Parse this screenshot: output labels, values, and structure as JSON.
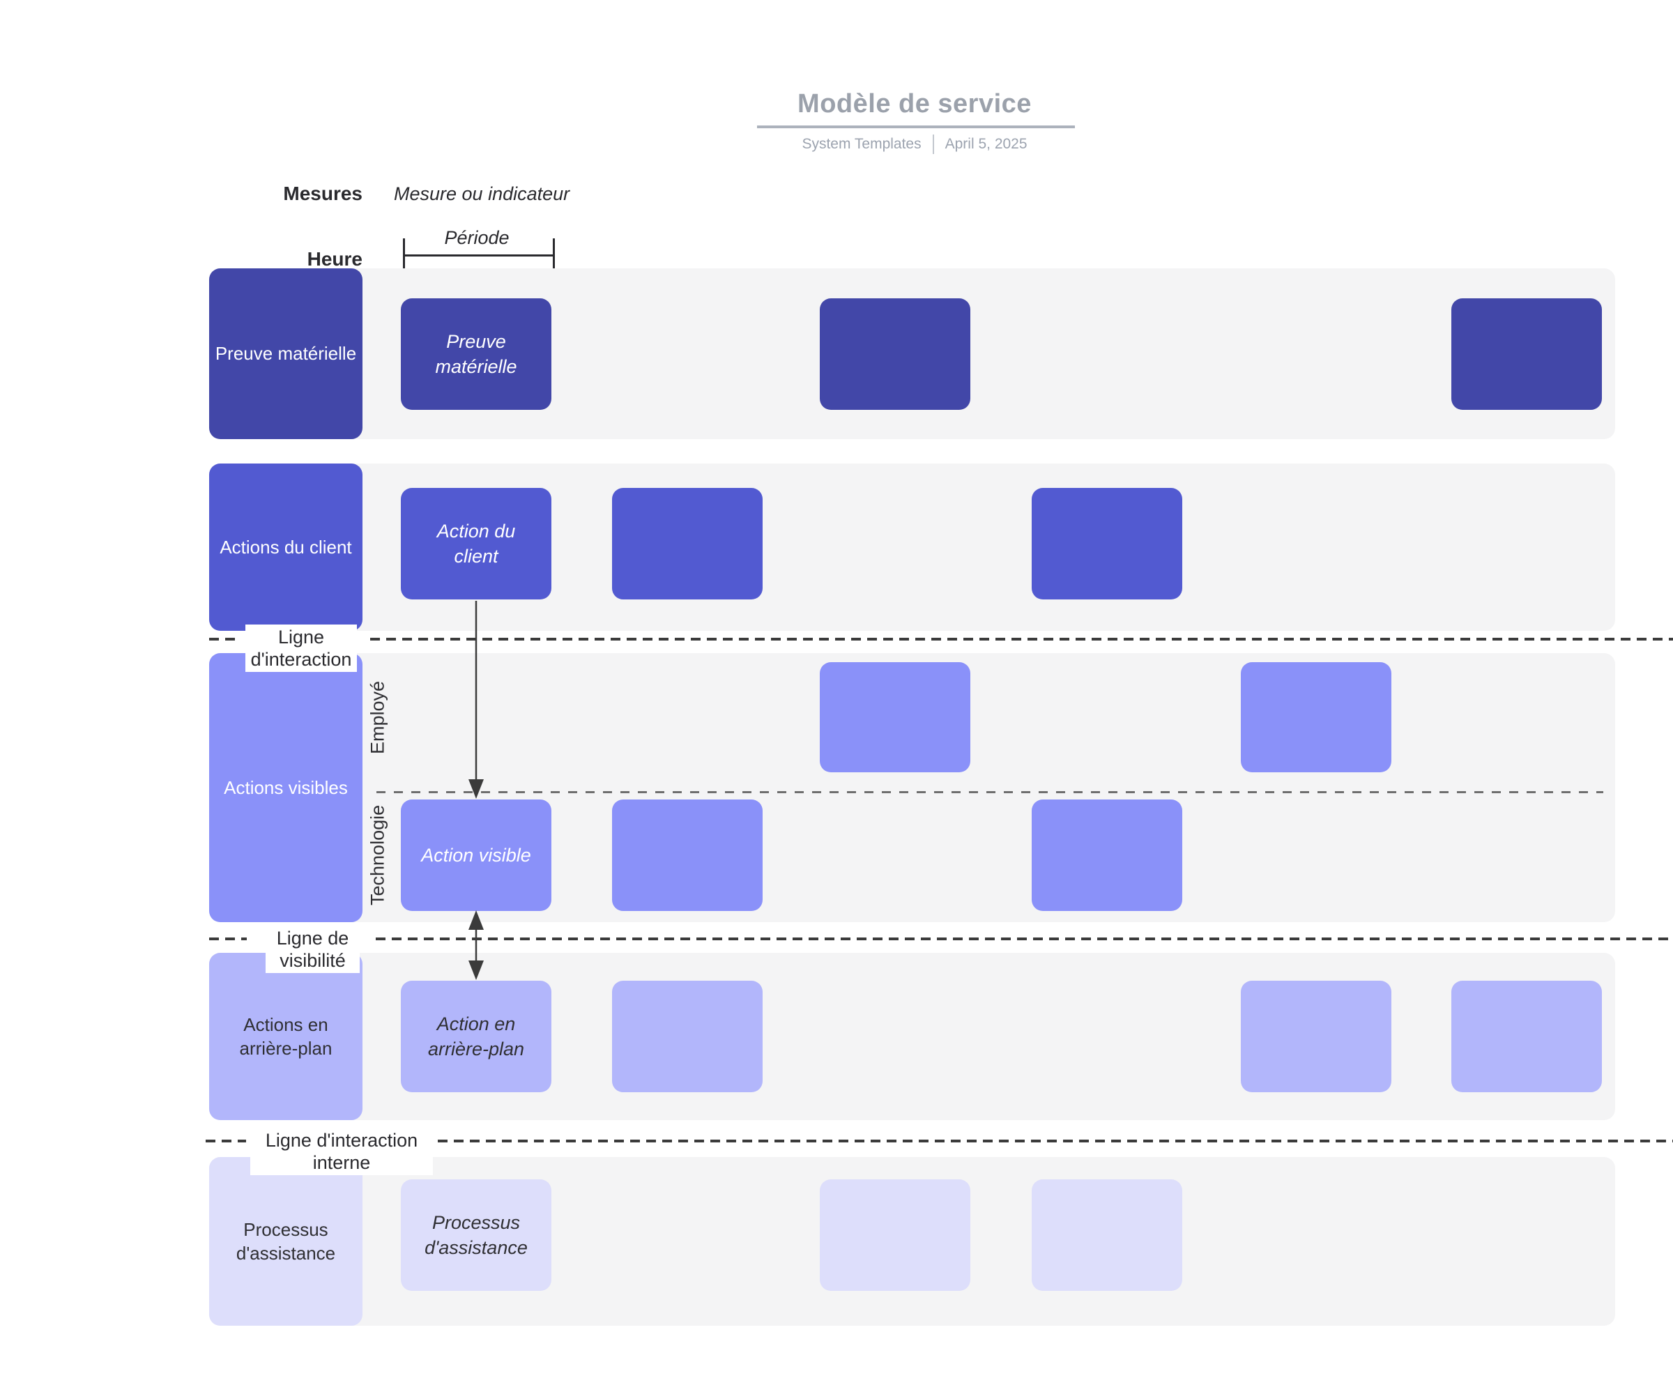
{
  "header": {
    "title": "Modèle de service",
    "source": "System Templates",
    "date": "April 5, 2025"
  },
  "annotations": {
    "measures_label": "Mesures",
    "measures_value": "Mesure ou indicateur",
    "time_label": "Heure",
    "time_value": "Période"
  },
  "palette": {
    "band_bg": "#F4F4F5",
    "row_dark": "#4247A8",
    "row_medium": "#525AD1",
    "row_light": "#8A91F9",
    "row_lighter": "#B2B6FB",
    "row_lightest": "#DDDEFB",
    "line_color": "#3B3B3B",
    "title_gray": "#9BA1AB",
    "text_dark": "#2F2F33",
    "text_light": "#FFFFFF"
  },
  "grid": {
    "columns": 6
  },
  "rows": [
    {
      "id": "preuve-materielle",
      "label": "Preuve matérielle",
      "fill": "#4247A8",
      "text": "#FFFFFF",
      "boxes": [
        {
          "col": 0,
          "label": "Preuve matérielle"
        },
        {
          "col": 2
        },
        {
          "col": 5
        }
      ]
    },
    {
      "id": "actions-client",
      "label": "Actions du client",
      "fill": "#525AD1",
      "text": "#FFFFFF",
      "boxes": [
        {
          "col": 0,
          "label": "Action du client"
        },
        {
          "col": 1
        },
        {
          "col": 3
        }
      ]
    },
    {
      "id": "actions-visibles",
      "label": "Actions visibles",
      "fill": "#8A91F9",
      "text": "#FFFFFF",
      "sublanes": [
        {
          "label": "Employé",
          "boxes": [
            {
              "col": 2
            },
            {
              "col": 4
            }
          ]
        },
        {
          "label": "Technologie",
          "boxes": [
            {
              "col": 0,
              "label": "Action visible"
            },
            {
              "col": 1
            },
            {
              "col": 3
            }
          ]
        }
      ]
    },
    {
      "id": "actions-arriere-plan",
      "label": "Actions en arrière-plan",
      "fill": "#B2B6FB",
      "text": "#2F2F33",
      "boxes": [
        {
          "col": 0,
          "label": "Action en arrière-plan"
        },
        {
          "col": 1
        },
        {
          "col": 4
        },
        {
          "col": 5
        }
      ]
    },
    {
      "id": "processus-assistance",
      "label": "Processus d'assistance",
      "fill": "#DDDEFB",
      "text": "#2F2F33",
      "boxes": [
        {
          "col": 0,
          "label": "Processus d'assistance"
        },
        {
          "col": 2
        },
        {
          "col": 3
        }
      ]
    }
  ],
  "lines": [
    {
      "id": "interaction",
      "label": "Ligne d'interaction"
    },
    {
      "id": "visibility",
      "label": "Ligne de visibilité"
    },
    {
      "id": "internal-interaction",
      "label": "Ligne d'interaction interne"
    }
  ]
}
